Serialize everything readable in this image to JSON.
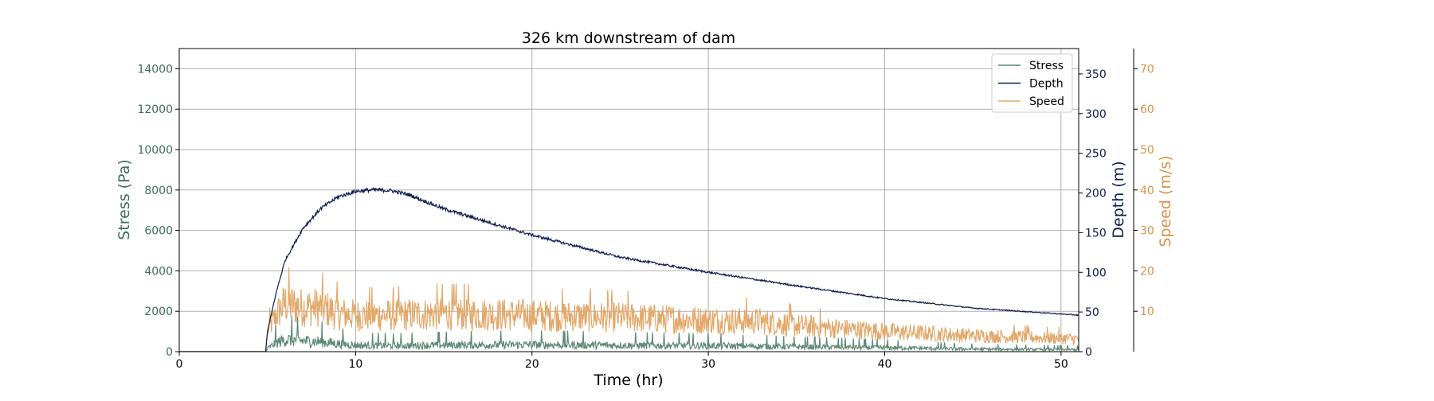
{
  "chart_data": {
    "type": "line",
    "title": "326 km downstream of dam",
    "xlabel": "Time (hr)",
    "xlim": [
      0,
      51
    ],
    "xticks": [
      0,
      10,
      20,
      30,
      40,
      50
    ],
    "grid": true,
    "legend_position": "top-right",
    "axes": {
      "stress": {
        "label": "Stress (Pa)",
        "ylim": [
          0,
          15000
        ],
        "ticks": [
          0,
          2000,
          4000,
          6000,
          8000,
          10000,
          12000,
          14000
        ],
        "color": "#3f6e58"
      },
      "depth": {
        "label": "Depth (m)",
        "ylim": [
          0,
          382
        ],
        "ticks": [
          0,
          50,
          100,
          150,
          200,
          250,
          300,
          350
        ],
        "color": "#0d1d4f"
      },
      "speed": {
        "label": "Speed (m/s)",
        "ylim": [
          0,
          75
        ],
        "ticks": [
          10,
          20,
          30,
          40,
          50,
          60,
          70
        ],
        "color": "#d9924a"
      }
    },
    "series": [
      {
        "name": "Stress",
        "axis": "stress",
        "color": "#5f8a75",
        "x": [
          0,
          4.9,
          5.0,
          5.5,
          6.0,
          7.0,
          8.0,
          9.0,
          10.0,
          12.0,
          15.0,
          20.0,
          25.0,
          30.0,
          35.0,
          40.0,
          45.0,
          51.0
        ],
        "y": [
          0,
          0,
          150,
          450,
          600,
          550,
          500,
          400,
          320,
          300,
          330,
          350,
          320,
          300,
          250,
          200,
          130,
          100
        ]
      },
      {
        "name": "Depth",
        "axis": "depth",
        "color": "#0d1d4f",
        "x": [
          0,
          4.9,
          5.0,
          5.5,
          6.0,
          7.0,
          8.0,
          9.0,
          10.0,
          11.0,
          12.0,
          13.0,
          15.0,
          18.0,
          20.0,
          25.0,
          30.0,
          35.0,
          40.0,
          45.0,
          51.0
        ],
        "y": [
          0,
          0,
          25,
          75,
          115,
          155,
          180,
          195,
          202,
          204,
          203,
          198,
          180,
          160,
          147,
          119,
          100,
          83,
          67,
          55,
          46
        ]
      },
      {
        "name": "Speed",
        "axis": "speed",
        "color": "#e3a86a",
        "x": [
          0,
          4.9,
          5.0,
          5.5,
          6.0,
          7.0,
          8.0,
          9.0,
          10.0,
          12.0,
          15.0,
          20.0,
          25.0,
          30.0,
          33.0,
          35.0,
          40.0,
          45.0,
          51.0
        ],
        "y": [
          0,
          0,
          5,
          9,
          12,
          11,
          11,
          9.5,
          9,
          9,
          9.5,
          9,
          8.5,
          7.8,
          7.5,
          6.5,
          5,
          4,
          3.2
        ]
      }
    ]
  }
}
